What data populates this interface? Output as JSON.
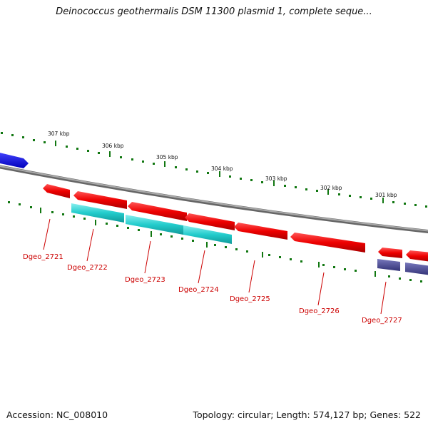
{
  "title": "Deinococcus geothermalis DSM 11300 plasmid 1, complete seque...",
  "kbp_labels": [
    "307 kbp",
    "306 kbp",
    "305 kbp",
    "304 kbp",
    "303 kbp",
    "302 kbp",
    "301 kbp"
  ],
  "gene_labels": [
    "Dgeo_2721",
    "Dgeo_2722",
    "Dgeo_2723",
    "Dgeo_2724",
    "Dgeo_2725",
    "Dgeo_2726",
    "Dgeo_2727"
  ],
  "footer": {
    "accession": "Accession: NC_008010",
    "summary": "Topology: circular; Length: 574,127 bp; Genes: 522"
  },
  "colors": {
    "backbone": "#888888",
    "red_gene": "#ee0000",
    "cyan_feature": "#22cccc",
    "blue_gene": "#1111dd",
    "purple_feature": "#444488",
    "tick": "#117711",
    "label": "#cc0000"
  }
}
